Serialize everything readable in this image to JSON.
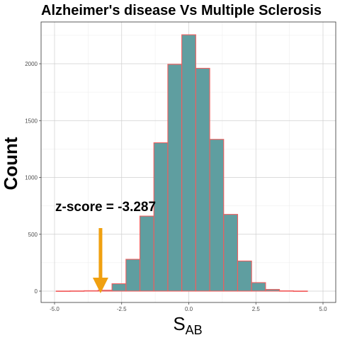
{
  "chart_data": {
    "type": "bar",
    "title": "Alzheimer's disease Vs Multiple Sclerosis",
    "xlabel": "S",
    "xlabel_sub": "AB",
    "ylabel": "Count",
    "xlim": [
      -5.0,
      5.0
    ],
    "ylim": [
      0,
      2500
    ],
    "x_ticks": [
      -5.0,
      -2.5,
      0.0,
      2.5,
      5.0
    ],
    "x_tick_labels": [
      "-5.0",
      "-2.5",
      "0.0",
      "2.5",
      "5.0"
    ],
    "y_ticks": [
      0,
      500,
      1000,
      1500,
      2000
    ],
    "y_tick_labels": [
      "0",
      "500",
      "1000",
      "1500",
      "2000"
    ],
    "grid": true,
    "bin_width": 0.52,
    "bin_centers": [
      -4.68,
      -4.16,
      -3.64,
      -3.12,
      -2.6,
      -2.08,
      -1.56,
      -1.04,
      -0.52,
      0.0,
      0.52,
      1.04,
      1.56,
      2.08,
      2.6,
      3.12,
      3.64,
      4.16
    ],
    "values": [
      1,
      2,
      4,
      8,
      65,
      280,
      660,
      1305,
      1995,
      2255,
      1960,
      1335,
      675,
      265,
      75,
      15,
      3,
      1
    ],
    "bar_fill": "#5f9ea0",
    "bar_outline": "#f25d5d",
    "annotation": {
      "text": "z-score = -3.287",
      "value": -3.287,
      "arrow_color": "#f0a010"
    }
  }
}
